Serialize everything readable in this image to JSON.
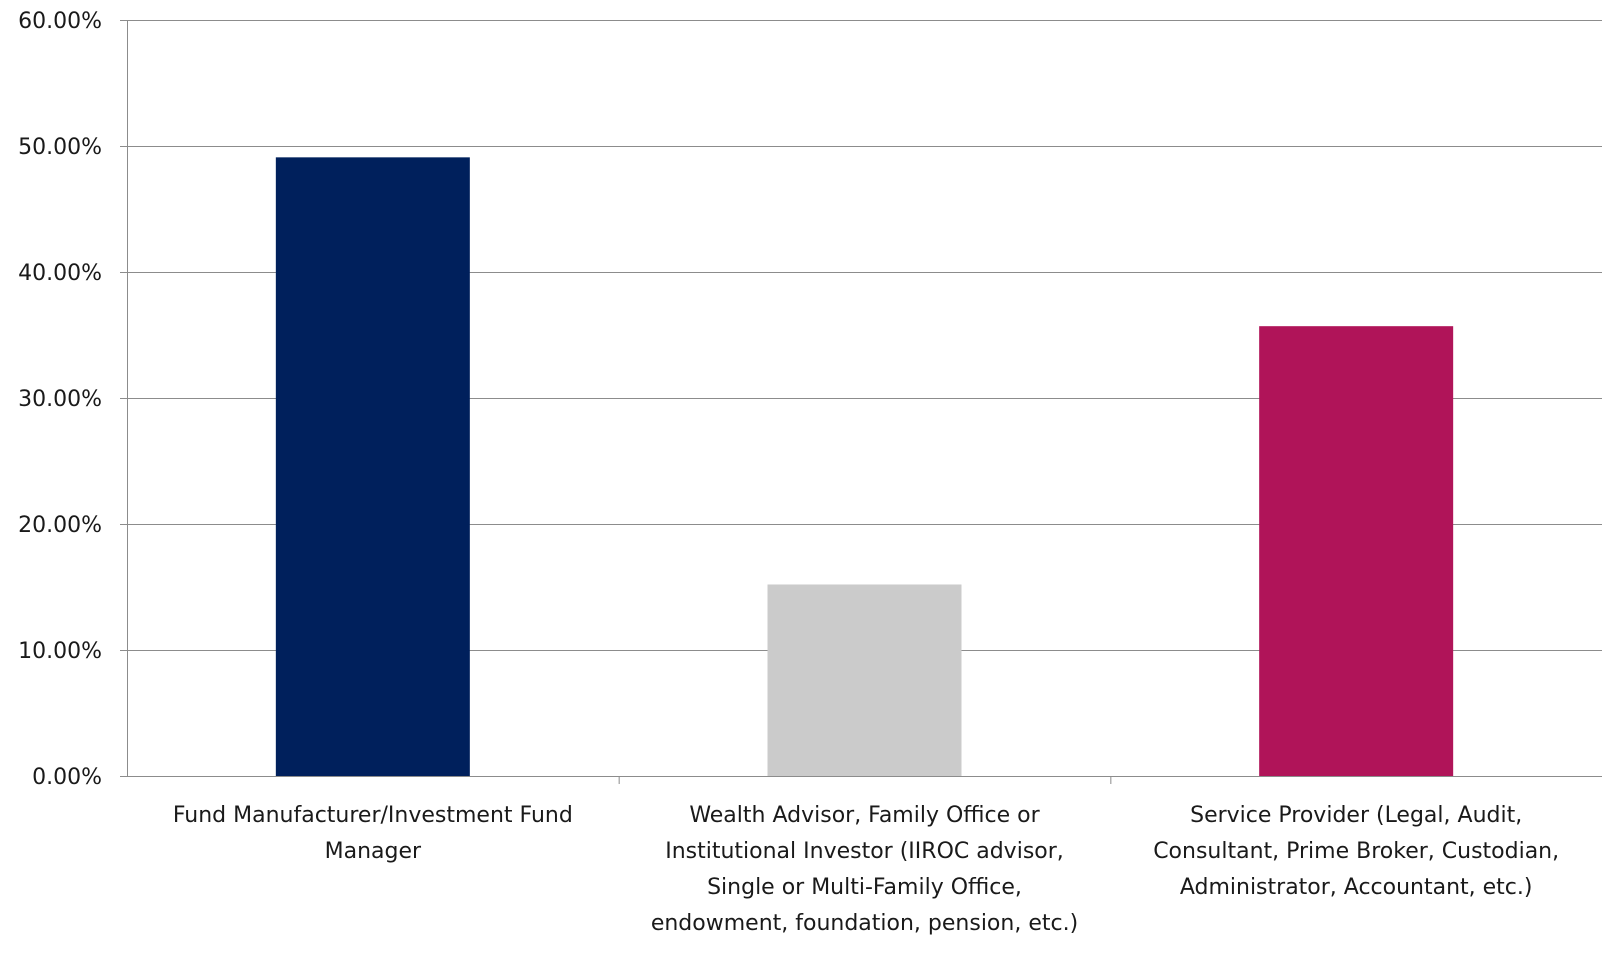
{
  "chart_data": {
    "type": "bar",
    "title": "",
    "xlabel": "",
    "ylabel": "",
    "categories": [
      "Fund Manufacturer/Investment Fund Manager",
      "Wealth Advisor, Family Office or Institutional Investor (IIROC advisor, Single or Multi-Family Office, endowment, foundation, pension, etc.)",
      "Service Provider (Legal, Audit, Consultant, Prime Broker, Custodian, Administrator, Accountant, etc.)"
    ],
    "category_label_lines": [
      [
        "Fund Manufacturer/Investment Fund",
        "Manager"
      ],
      [
        "Wealth Advisor, Family Office or",
        "Institutional Investor (IIROC advisor,",
        "Single or Multi-Family Office,",
        "endowment, foundation, pension, etc.)"
      ],
      [
        "Service Provider (Legal, Audit,",
        "Consultant, Prime Broker, Custodian,",
        "Administrator, Accountant, etc.)"
      ]
    ],
    "values": [
      49.1,
      15.2,
      35.7
    ],
    "colors": [
      "#00205c",
      "#cbcbcb",
      "#b01459"
    ],
    "ylim": [
      0,
      60
    ],
    "yticks": [
      0,
      10,
      20,
      30,
      40,
      50,
      60
    ],
    "ytick_labels": [
      "0.00%",
      "10.00%",
      "20.00%",
      "30.00%",
      "40.00%",
      "50.00%",
      "60.00%"
    ],
    "grid": true,
    "legend": "none",
    "gridline_color": "#8c8c8c",
    "axis_color": "#8c8c8c"
  }
}
